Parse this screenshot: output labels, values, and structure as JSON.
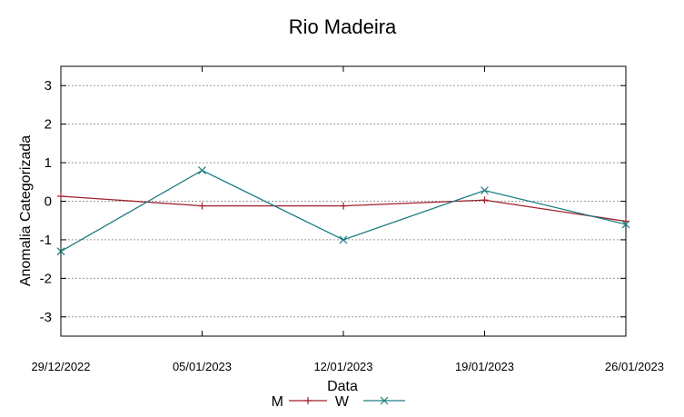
{
  "chart_data": {
    "type": "line",
    "title": "Rio Madeira",
    "xlabel": "Data",
    "ylabel": "Anomalia Categorizada",
    "x": [
      "29/12/2022",
      "05/01/2023",
      "12/01/2023",
      "19/01/2023",
      "26/01/2023"
    ],
    "ylim": [
      -3.5,
      3.5
    ],
    "yticks": [
      -3,
      -2,
      -1,
      0,
      1,
      2,
      3
    ],
    "grid": true,
    "legend_position": "bottom-center",
    "series": [
      {
        "name": "M",
        "color": "#a0202a",
        "marker": "plus",
        "values": [
          0.13,
          -0.12,
          -0.12,
          0.03,
          -0.52
        ]
      },
      {
        "name": "W",
        "color": "#1d7c80",
        "marker": "x",
        "values": [
          -1.3,
          0.8,
          -1.0,
          0.28,
          -0.6
        ]
      }
    ]
  }
}
